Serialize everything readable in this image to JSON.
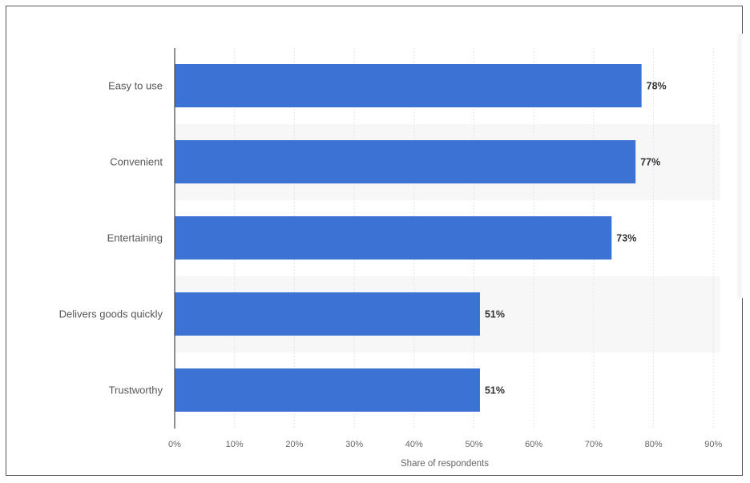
{
  "chart_data": {
    "type": "bar",
    "orientation": "horizontal",
    "categories": [
      "Easy to use",
      "Convenient",
      "Entertaining",
      "Delivers goods quickly",
      "Trustworthy"
    ],
    "values": [
      78,
      77,
      73,
      51,
      51
    ],
    "value_labels": [
      "78%",
      "77%",
      "73%",
      "51%",
      "51%"
    ],
    "title": "",
    "xlabel": "Share of respondents",
    "ylabel": "",
    "xlim": [
      0,
      90
    ],
    "xticks": [
      0,
      10,
      20,
      30,
      40,
      50,
      60,
      70,
      80,
      90
    ],
    "xtick_labels": [
      "0%",
      "10%",
      "20%",
      "30%",
      "40%",
      "50%",
      "60%",
      "70%",
      "80%",
      "90%"
    ],
    "grid": true,
    "bar_color": "#3d72d5"
  }
}
